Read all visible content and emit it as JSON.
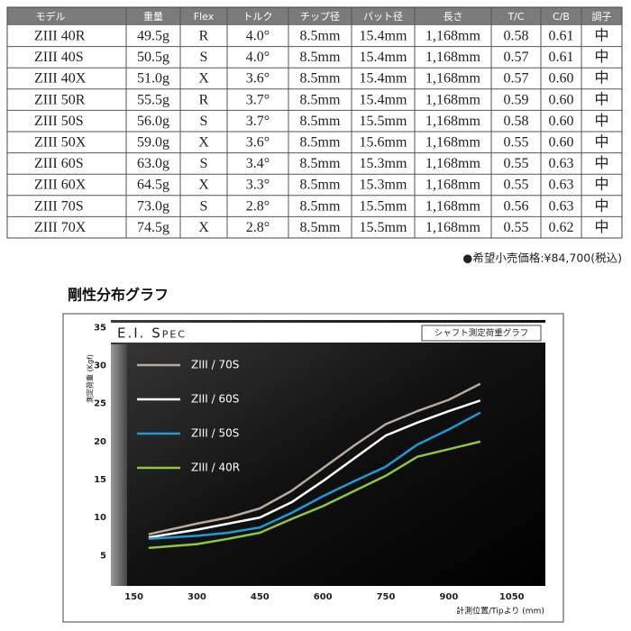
{
  "table": {
    "header": [
      "モデル",
      "重量",
      "Flex",
      "トルク",
      "チップ径",
      "バット径",
      "長さ",
      "T/C",
      "C/B",
      "調子"
    ],
    "rows": [
      [
        "ZIII 40R",
        "49.5g",
        "R",
        "4.0°",
        "8.5mm",
        "15.4mm",
        "1,168mm",
        "0.58",
        "0.61",
        "中"
      ],
      [
        "ZIII 40S",
        "50.5g",
        "S",
        "4.0°",
        "8.5mm",
        "15.4mm",
        "1,168mm",
        "0.57",
        "0.61",
        "中"
      ],
      [
        "ZIII 40X",
        "51.0g",
        "X",
        "3.6°",
        "8.5mm",
        "15.4mm",
        "1,168mm",
        "0.57",
        "0.60",
        "中"
      ],
      [
        "ZIII 50R",
        "55.5g",
        "R",
        "3.7°",
        "8.5mm",
        "15.4mm",
        "1,168mm",
        "0.59",
        "0.60",
        "中"
      ],
      [
        "ZIII 50S",
        "56.0g",
        "S",
        "3.7°",
        "8.5mm",
        "15.5mm",
        "1,168mm",
        "0.58",
        "0.60",
        "中"
      ],
      [
        "ZIII 50X",
        "59.0g",
        "X",
        "3.6°",
        "8.5mm",
        "15.6mm",
        "1,168mm",
        "0.55",
        "0.60",
        "中"
      ],
      [
        "ZIII 60S",
        "63.0g",
        "S",
        "3.4°",
        "8.5mm",
        "15.3mm",
        "1,168mm",
        "0.55",
        "0.63",
        "中"
      ],
      [
        "ZIII 60X",
        "64.5g",
        "X",
        "3.3°",
        "8.5mm",
        "15.3mm",
        "1,168mm",
        "0.55",
        "0.63",
        "中"
      ],
      [
        "ZIII 70S",
        "73.0g",
        "S",
        "2.8°",
        "8.5mm",
        "15.5mm",
        "1,168mm",
        "0.56",
        "0.63",
        "中"
      ],
      [
        "ZIII 70X",
        "74.5g",
        "X",
        "2.8°",
        "8.5mm",
        "15.5mm",
        "1,168mm",
        "0.55",
        "0.62",
        "中"
      ]
    ]
  },
  "price": "●希望小売価格:¥84,700(税込)",
  "chart_data": {
    "type": "line",
    "title": "剛性分布グラフ",
    "spec_label": "E.I. Spec",
    "subtitle": "シャフト測定荷重グラフ",
    "y_label": "測定荷重 (Kgf)",
    "x_label": "計測位置/Tipより (mm)",
    "x": [
      185,
      300,
      375,
      450,
      525,
      600,
      675,
      750,
      825,
      900,
      975
    ],
    "xlim": [
      95,
      1130
    ],
    "xticks": [
      150,
      300,
      450,
      600,
      750,
      900,
      1050
    ],
    "ylim": [
      1,
      36
    ],
    "yticks": [
      5,
      10,
      15,
      20,
      25,
      30,
      35
    ],
    "series": [
      {
        "name": "ZIII / 70S",
        "color": "#b9ab9b",
        "values": [
          7.8,
          9.2,
          10.0,
          11.2,
          13.5,
          16.5,
          19.5,
          22.3,
          24.0,
          25.5,
          27.6
        ]
      },
      {
        "name": "ZIII / 60S",
        "color": "#ffffff",
        "values": [
          7.4,
          8.4,
          9.2,
          10.0,
          12.0,
          14.8,
          17.8,
          20.8,
          22.5,
          24.0,
          25.4
        ]
      },
      {
        "name": "ZIII / 50S",
        "color": "#1e9ad6",
        "values": [
          7.2,
          7.6,
          8.0,
          8.7,
          10.6,
          12.8,
          14.8,
          16.7,
          19.6,
          21.6,
          23.8
        ]
      },
      {
        "name": "ZIII / 40R",
        "color": "#8dc63f",
        "values": [
          6.0,
          6.5,
          7.2,
          8.0,
          9.8,
          11.5,
          13.5,
          15.5,
          18.0,
          19.0,
          20.0
        ]
      }
    ]
  }
}
